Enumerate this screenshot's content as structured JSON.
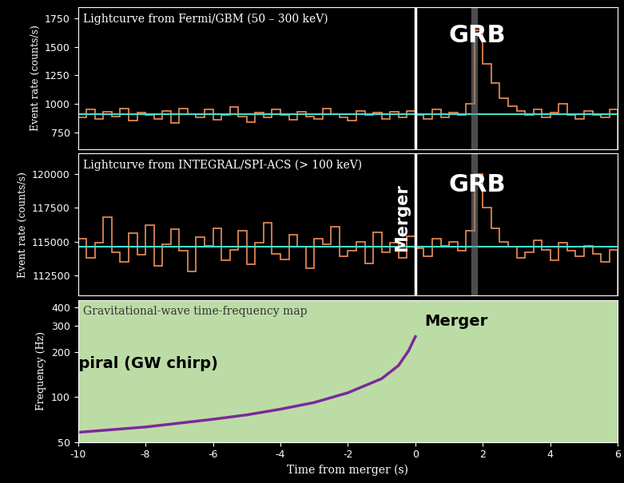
{
  "chart_data": [
    {
      "type": "step",
      "title": "Lightcurve from Fermi/GBM (50 – 300 keV)",
      "y_label": "Event rate (counts/s)",
      "bins": [
        -10,
        -9.75,
        -9.5,
        -9.25,
        -9,
        -8.75,
        -8.5,
        -8.25,
        -8,
        -7.75,
        -7.5,
        -7.25,
        -7,
        -6.75,
        -6.5,
        -6.25,
        -6,
        -5.75,
        -5.5,
        -5.25,
        -5,
        -4.75,
        -4.5,
        -4.25,
        -4,
        -3.75,
        -3.5,
        -3.25,
        -3,
        -2.75,
        -2.5,
        -2.25,
        -2,
        -1.75,
        -1.5,
        -1.25,
        -1,
        -0.75,
        -0.5,
        -0.25,
        0,
        0.25,
        0.5,
        0.75,
        1,
        1.25,
        1.5,
        1.75,
        2,
        2.25,
        2.5,
        2.75,
        3,
        3.25,
        3.5,
        3.75,
        4,
        4.25,
        4.5,
        4.75,
        5,
        5.25,
        5.5,
        5.75,
        6
      ],
      "values": [
        880,
        950,
        870,
        930,
        890,
        960,
        850,
        920,
        900,
        870,
        940,
        830,
        960,
        910,
        880,
        950,
        860,
        900,
        970,
        890,
        840,
        920,
        880,
        950,
        900,
        860,
        930,
        890,
        870,
        960,
        910,
        880,
        850,
        940,
        900,
        920,
        870,
        930,
        880,
        940,
        900,
        870,
        950,
        880,
        920,
        900,
        1000,
        1650,
        1350,
        1180,
        1050,
        980,
        940,
        900,
        950,
        880,
        920,
        1000,
        900,
        870,
        940,
        900,
        880,
        950
      ],
      "background": 912,
      "merger_time": 0,
      "grb_time": 1.75,
      "color": "#f0905a",
      "xlim": [
        -10,
        6
      ],
      "ylim": [
        600,
        1850
      ],
      "yticks": [
        750,
        1000,
        1250,
        1500,
        1750
      ],
      "tick_labels": "y",
      "annotations": [
        "GRB"
      ]
    },
    {
      "type": "step",
      "title": "Lightcurve from INTEGRAL/SPI-ACS (> 100 keV)",
      "y_label": "Event rate (counts/s)",
      "bins": [
        -10,
        -9.75,
        -9.5,
        -9.25,
        -9,
        -8.75,
        -8.5,
        -8.25,
        -8,
        -7.75,
        -7.5,
        -7.25,
        -7,
        -6.75,
        -6.5,
        -6.25,
        -6,
        -5.75,
        -5.5,
        -5.25,
        -5,
        -4.75,
        -4.5,
        -4.25,
        -4,
        -3.75,
        -3.5,
        -3.25,
        -3,
        -2.75,
        -2.5,
        -2.25,
        -2,
        -1.75,
        -1.5,
        -1.25,
        -1,
        -0.75,
        -0.5,
        -0.25,
        0,
        0.25,
        0.5,
        0.75,
        1,
        1.25,
        1.5,
        1.75,
        2,
        2.25,
        2.5,
        2.75,
        3,
        3.25,
        3.5,
        3.75,
        4,
        4.25,
        4.5,
        4.75,
        5,
        5.25,
        5.5,
        5.75,
        6
      ],
      "values": [
        115200,
        113800,
        114900,
        116800,
        114200,
        113500,
        115600,
        114000,
        116200,
        113200,
        114800,
        115900,
        114300,
        112800,
        115300,
        114700,
        116000,
        113600,
        114400,
        115800,
        113300,
        114900,
        116400,
        114100,
        113700,
        115500,
        114600,
        113000,
        115200,
        114800,
        116100,
        113900,
        114300,
        115000,
        113400,
        115700,
        114200,
        114900,
        113800,
        115400,
        114500,
        113900,
        115200,
        114700,
        115000,
        114300,
        115800,
        120000,
        117500,
        116000,
        115000,
        114600,
        113800,
        114200,
        115100,
        114400,
        113600,
        114900,
        114300,
        113900,
        114700,
        114100,
        113500,
        114400
      ],
      "background": 114600,
      "merger_time": 0,
      "grb_time": 1.75,
      "color": "#f0905a",
      "xlim": [
        -10,
        6
      ],
      "ylim": [
        111000,
        121500
      ],
      "yticks": [
        112500,
        115000,
        117500,
        120000
      ],
      "tick_labels": "y",
      "annotations": [
        "GRB",
        "Merger"
      ]
    },
    {
      "type": "line",
      "title": "Gravitational-wave time-frequency map",
      "x_label": "Time from merger (s)",
      "y_label": "Frequency (Hz)",
      "x": [
        -10,
        -8,
        -6,
        -5,
        -4,
        -3,
        -2,
        -1,
        -0.5,
        -0.2,
        0
      ],
      "values": [
        58,
        63,
        71,
        76,
        83,
        92,
        107,
        133,
        163,
        205,
        255
      ],
      "color": "#7a2a9a",
      "log": "y",
      "xlim": [
        -10,
        6
      ],
      "ylim": [
        50,
        450
      ],
      "xticks": [
        -10,
        -8,
        -6,
        -4,
        -2,
        0,
        2,
        4,
        6
      ],
      "yticks": [
        50,
        100,
        200,
        300,
        400
      ],
      "annotations": [
        "Merger",
        "In-spiral (GW chirp)"
      ]
    }
  ]
}
